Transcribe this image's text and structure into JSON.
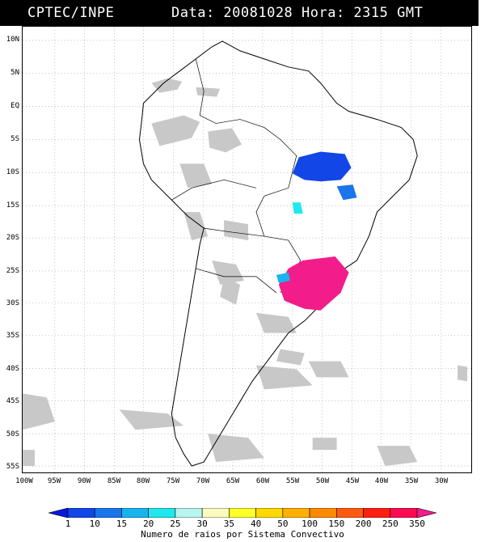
{
  "header": {
    "source": "CPTEC/INPE",
    "datetime": "Data: 20081028 Hora: 2315 GMT"
  },
  "map": {
    "lat_labels": [
      "10N",
      "5N",
      "EQ",
      "5S",
      "10S",
      "15S",
      "20S",
      "25S",
      "30S",
      "35S",
      "40S",
      "45S",
      "50S",
      "55S"
    ],
    "lon_labels": [
      "100W",
      "95W",
      "90W",
      "85W",
      "80W",
      "75W",
      "70W",
      "65W",
      "60W",
      "55W",
      "50W",
      "45W",
      "40W",
      "35W",
      "30W"
    ]
  },
  "legend": {
    "values": [
      "1",
      "10",
      "15",
      "20",
      "25",
      "30",
      "35",
      "40",
      "50",
      "100",
      "150",
      "200",
      "250",
      "350"
    ],
    "colors": [
      "#0a18e0",
      "#1346e6",
      "#1a74ec",
      "#17b4f0",
      "#21e8ef",
      "#b8f4f0",
      "#fbfbbf",
      "#ffff28",
      "#ffd800",
      "#ffb000",
      "#ff8a00",
      "#ff5a10",
      "#ff2010",
      "#ff0a50",
      "#f21c8a"
    ],
    "title": "Numero de raios por Sistema Convectivo"
  }
}
